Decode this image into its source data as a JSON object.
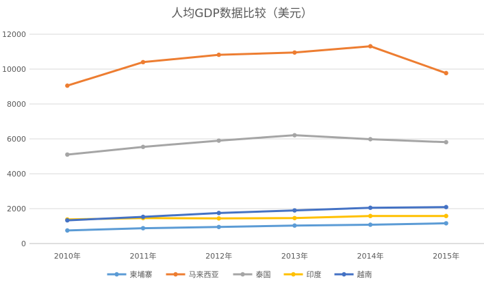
{
  "chart_data": {
    "type": "line",
    "title": "人均GDP数据比较（美元）",
    "categories": [
      "2010年",
      "2011年",
      "2012年",
      "2013年",
      "2014年",
      "2015年"
    ],
    "ylim": [
      0,
      12000
    ],
    "yticks": [
      0,
      2000,
      4000,
      6000,
      8000,
      10000,
      12000
    ],
    "ytick_labels": [
      "0",
      "2000",
      "4000",
      "6000",
      "8000",
      "10000",
      "12000"
    ],
    "grid": true,
    "legend_position": "bottom",
    "series": [
      {
        "name": "柬埔寨",
        "color": "#5B9BD5",
        "values": [
          750,
          880,
          950,
          1030,
          1080,
          1160
        ]
      },
      {
        "name": "马来西亚",
        "color": "#ED7D31",
        "values": [
          9050,
          10400,
          10820,
          10950,
          11310,
          9770
        ]
      },
      {
        "name": "泰国",
        "color": "#A5A5A5",
        "values": [
          5100,
          5540,
          5900,
          6210,
          5980,
          5810
        ]
      },
      {
        "name": "印度",
        "color": "#FFC000",
        "values": [
          1380,
          1460,
          1440,
          1460,
          1580,
          1580
        ]
      },
      {
        "name": "越南",
        "color": "#4472C4",
        "values": [
          1330,
          1530,
          1750,
          1900,
          2050,
          2090
        ]
      }
    ]
  }
}
